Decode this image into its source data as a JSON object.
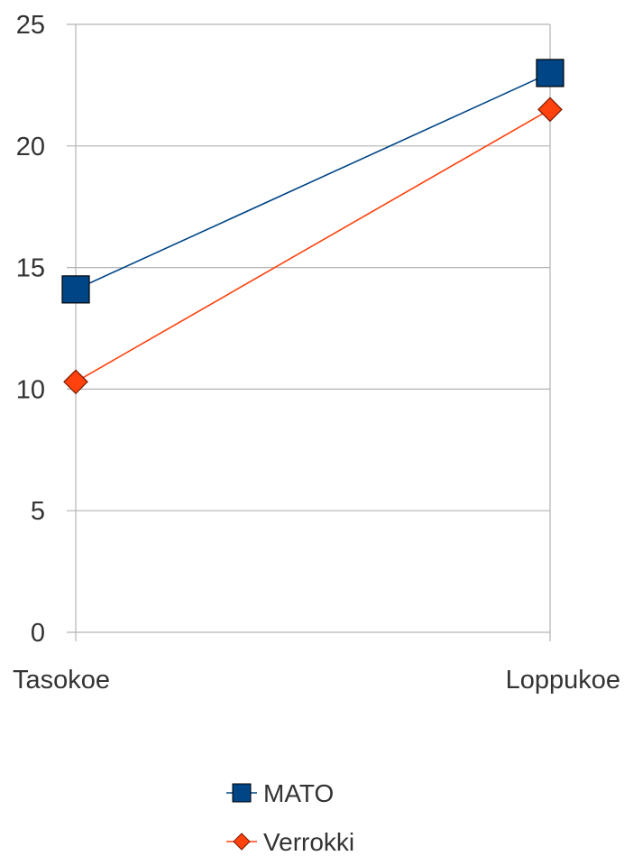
{
  "chart_data": {
    "type": "line",
    "categories": [
      "Tasokoe",
      "Loppukoe"
    ],
    "ylim": [
      0,
      25
    ],
    "yticks": [
      0,
      5,
      10,
      15,
      20,
      25
    ],
    "grid": true,
    "legend_position": "bottom",
    "series": [
      {
        "name": "MATO",
        "values": [
          14.1,
          23.0
        ],
        "color": "#004586",
        "marker": "square"
      },
      {
        "name": "Verrokki",
        "values": [
          10.3,
          21.5
        ],
        "color": "#ff420e",
        "marker": "diamond"
      }
    ]
  }
}
